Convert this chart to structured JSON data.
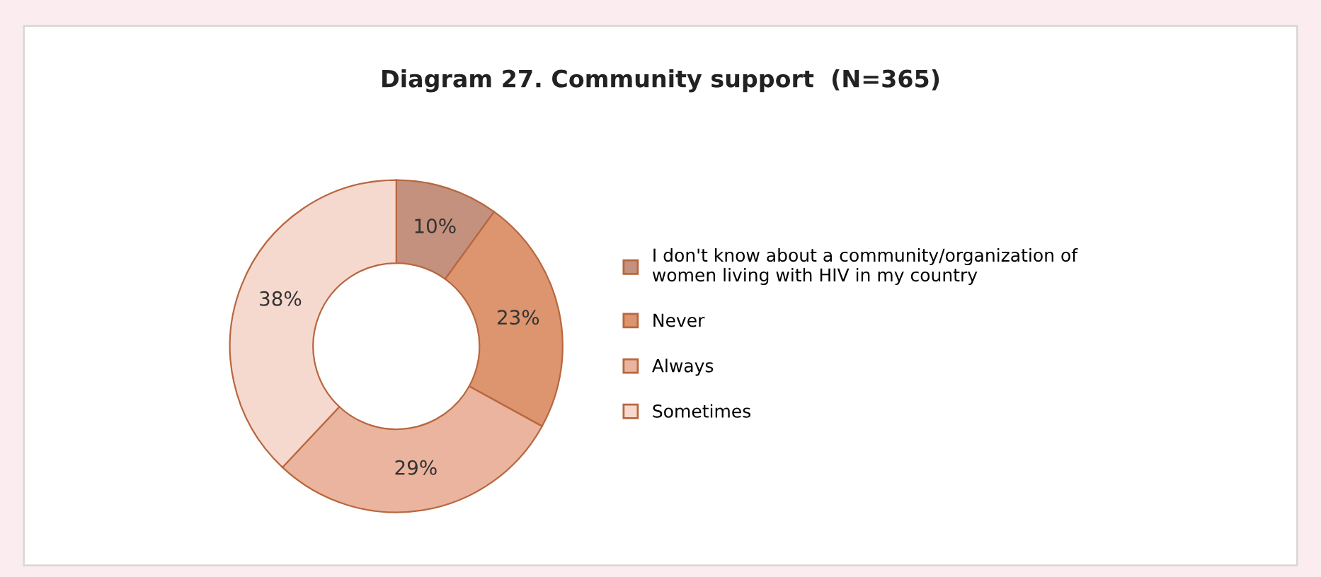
{
  "chart_data": {
    "type": "donut",
    "title": "Diagram 27. Community support  (N=365)",
    "categories": [
      "I don't know about a community/organization of\nwomen living with HIV in my country",
      "Never",
      "Always",
      "Sometimes"
    ],
    "values": [
      10,
      23,
      29,
      38
    ],
    "colors": [
      "#c4917e",
      "#dc956e",
      "#ebb49e",
      "#f6d9ce"
    ],
    "value_labels": [
      "10%",
      "23%",
      "29%",
      "38%"
    ],
    "legend": "right"
  }
}
